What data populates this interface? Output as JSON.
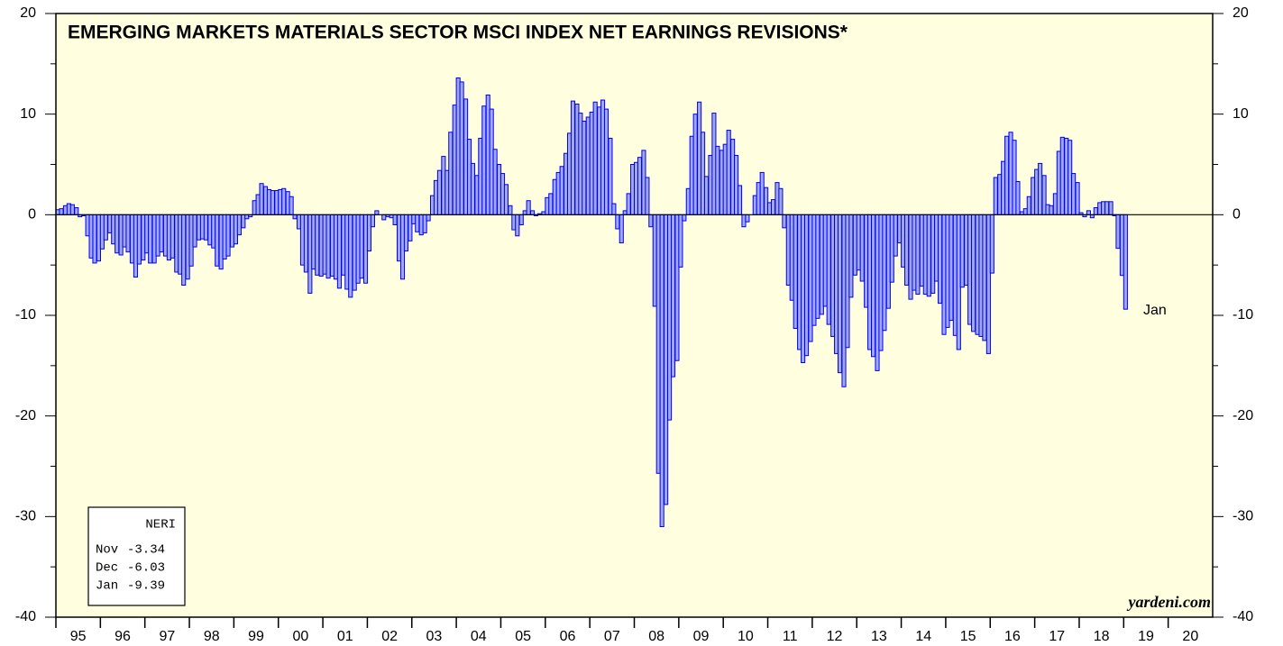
{
  "chart_data": {
    "type": "bar",
    "title": "EMERGING MARKETS MATERIALS SECTOR MSCI INDEX NET EARNINGS REVISIONS*",
    "annotation": "Jan",
    "credit": "yardeni.com",
    "legend_box": {
      "title": "NERI",
      "rows": [
        {
          "month": "Nov",
          "value": -3.34
        },
        {
          "month": "Dec",
          "value": -6.03
        },
        {
          "month": "Jan",
          "value": -9.39
        }
      ]
    },
    "color": "#a0a8ff",
    "stroke": "#0000ee",
    "background": "#ffffe0",
    "xlim": [
      1995,
      2021
    ],
    "xticks": [
      {
        "value": 1995,
        "label": "95"
      },
      {
        "value": 1996,
        "label": "96"
      },
      {
        "value": 1997,
        "label": "97"
      },
      {
        "value": 1998,
        "label": "98"
      },
      {
        "value": 1999,
        "label": "99"
      },
      {
        "value": 2000,
        "label": "00"
      },
      {
        "value": 2001,
        "label": "01"
      },
      {
        "value": 2002,
        "label": "02"
      },
      {
        "value": 2003,
        "label": "03"
      },
      {
        "value": 2004,
        "label": "04"
      },
      {
        "value": 2005,
        "label": "05"
      },
      {
        "value": 2006,
        "label": "06"
      },
      {
        "value": 2007,
        "label": "07"
      },
      {
        "value": 2008,
        "label": "08"
      },
      {
        "value": 2009,
        "label": "09"
      },
      {
        "value": 2010,
        "label": "10"
      },
      {
        "value": 2011,
        "label": "11"
      },
      {
        "value": 2012,
        "label": "12"
      },
      {
        "value": 2013,
        "label": "13"
      },
      {
        "value": 2014,
        "label": "14"
      },
      {
        "value": 2015,
        "label": "15"
      },
      {
        "value": 2016,
        "label": "16"
      },
      {
        "value": 2017,
        "label": "17"
      },
      {
        "value": 2018,
        "label": "18"
      },
      {
        "value": 2019,
        "label": "19"
      },
      {
        "value": 2020,
        "label": "20"
      }
    ],
    "ylim": [
      -40,
      20
    ],
    "yticks": [
      -40,
      -30,
      -20,
      -10,
      0,
      10,
      20
    ],
    "yminorticks": [
      -35,
      -25,
      -15,
      -5,
      5,
      15
    ],
    "x": [
      1995,
      1995.08,
      1995.17,
      1995.25,
      1995.33,
      1995.42,
      1995.5,
      1995.58,
      1995.67,
      1995.75,
      1995.83,
      1995.92,
      1996,
      1996.08,
      1996.17,
      1996.25,
      1996.33,
      1996.42,
      1996.5,
      1996.58,
      1996.67,
      1996.75,
      1996.83,
      1996.92,
      1997,
      1997.08,
      1997.17,
      1997.25,
      1997.33,
      1997.42,
      1997.5,
      1997.58,
      1997.67,
      1997.75,
      1997.83,
      1997.92,
      1998,
      1998.08,
      1998.17,
      1998.25,
      1998.33,
      1998.42,
      1998.5,
      1998.58,
      1998.67,
      1998.75,
      1998.83,
      1998.92,
      1999,
      1999.08,
      1999.17,
      1999.25,
      1999.33,
      1999.42,
      1999.5,
      1999.58,
      1999.67,
      1999.75,
      1999.83,
      1999.92,
      2000,
      2000.08,
      2000.17,
      2000.25,
      2000.33,
      2000.42,
      2000.5,
      2000.58,
      2000.67,
      2000.75,
      2000.83,
      2000.92,
      2001,
      2001.08,
      2001.17,
      2001.25,
      2001.33,
      2001.42,
      2001.5,
      2001.58,
      2001.67,
      2001.75,
      2001.83,
      2001.92,
      2002,
      2002.08,
      2002.17,
      2002.25,
      2002.33,
      2002.42,
      2002.5,
      2002.58,
      2002.67,
      2002.75,
      2002.83,
      2002.92,
      2003,
      2003.08,
      2003.17,
      2003.25,
      2003.33,
      2003.42,
      2003.5,
      2003.58,
      2003.67,
      2003.75,
      2003.83,
      2003.92,
      2004,
      2004.08,
      2004.17,
      2004.25,
      2004.33,
      2004.42,
      2004.5,
      2004.58,
      2004.67,
      2004.75,
      2004.83,
      2004.92,
      2005,
      2005.08,
      2005.17,
      2005.25,
      2005.33,
      2005.42,
      2005.5,
      2005.58,
      2005.67,
      2005.75,
      2005.83,
      2005.92,
      2006,
      2006.08,
      2006.17,
      2006.25,
      2006.33,
      2006.42,
      2006.5,
      2006.58,
      2006.67,
      2006.75,
      2006.83,
      2006.92,
      2007,
      2007.08,
      2007.17,
      2007.25,
      2007.33,
      2007.42,
      2007.5,
      2007.58,
      2007.67,
      2007.75,
      2007.83,
      2007.92,
      2008,
      2008.08,
      2008.17,
      2008.25,
      2008.33,
      2008.42,
      2008.5,
      2008.58,
      2008.67,
      2008.75,
      2008.83,
      2008.92,
      2009,
      2009.08,
      2009.17,
      2009.25,
      2009.33,
      2009.42,
      2009.5,
      2009.58,
      2009.67,
      2009.75,
      2009.83,
      2009.92,
      2010,
      2010.08,
      2010.17,
      2010.25,
      2010.33,
      2010.42,
      2010.5,
      2010.58,
      2010.67,
      2010.75,
      2010.83,
      2010.92,
      2011,
      2011.08,
      2011.17,
      2011.25,
      2011.33,
      2011.42,
      2011.5,
      2011.58,
      2011.67,
      2011.75,
      2011.83,
      2011.92,
      2012,
      2012.08,
      2012.17,
      2012.25,
      2012.33,
      2012.42,
      2012.5,
      2012.58,
      2012.67,
      2012.75,
      2012.83,
      2012.92,
      2013,
      2013.08,
      2013.17,
      2013.25,
      2013.33,
      2013.42,
      2013.5,
      2013.58,
      2013.67,
      2013.75,
      2013.83,
      2013.92,
      2014,
      2014.08,
      2014.17,
      2014.25,
      2014.33,
      2014.42,
      2014.5,
      2014.58,
      2014.67,
      2014.75,
      2014.83,
      2014.92,
      2015,
      2015.08,
      2015.17,
      2015.25,
      2015.33,
      2015.42,
      2015.5,
      2015.58,
      2015.67,
      2015.75,
      2015.83,
      2015.92,
      2016,
      2016.08,
      2016.17,
      2016.25,
      2016.33,
      2016.42,
      2016.5,
      2016.58,
      2016.67,
      2016.75,
      2016.83,
      2016.92,
      2017,
      2017.08,
      2017.17,
      2017.25,
      2017.33,
      2017.42,
      2017.5,
      2017.58,
      2017.67,
      2017.75,
      2017.83,
      2017.92,
      2018,
      2018.08,
      2018.17,
      2018.25,
      2018.33,
      2018.42,
      2018.5,
      2018.58,
      2018.67,
      2018.75,
      2018.83,
      2018.92,
      2019
    ],
    "values": [
      0.5,
      0.6,
      0.9,
      1.1,
      1.0,
      0.7,
      -0.2,
      -0.1,
      -2.1,
      -4.3,
      -4.8,
      -4.6,
      -3.4,
      -2.5,
      -1.8,
      -2.9,
      -3.8,
      -4.0,
      -3.2,
      -3.7,
      -4.8,
      -6.2,
      -4.9,
      -4.5,
      -3.8,
      -4.8,
      -4.8,
      -4.1,
      -3.7,
      -4.1,
      -4.5,
      -4.3,
      -5.7,
      -5.9,
      -7.0,
      -6.4,
      -5.1,
      -3.2,
      -2.5,
      -2.4,
      -2.5,
      -3.0,
      -3.3,
      -5.1,
      -5.4,
      -4.4,
      -4.1,
      -3.2,
      -2.9,
      -2.0,
      -1.3,
      -0.4,
      -0.2,
      1.4,
      2.0,
      3.1,
      2.8,
      2.5,
      2.4,
      2.4,
      2.5,
      2.6,
      2.3,
      1.8,
      -0.4,
      -1.4,
      -5.0,
      -5.7,
      -7.8,
      -5.4,
      -6.0,
      -6.1,
      -5.9,
      -6.3,
      -6.1,
      -6.4,
      -7.3,
      -6.0,
      -7.4,
      -8.2,
      -7.5,
      -6.8,
      -6.3,
      -6.8,
      -3.6,
      -1.2,
      0.4,
      0.0,
      -0.5,
      -0.2,
      -0.3,
      -1.0,
      -4.6,
      -6.4,
      -3.6,
      -2.6,
      -0.9,
      -1.7,
      -2.0,
      -1.8,
      -0.6,
      1.9,
      3.4,
      4.4,
      5.8,
      4.4,
      8.2,
      10.9,
      13.6,
      13.2,
      11.5,
      7.5,
      5.1,
      3.9,
      7.6,
      10.8,
      11.9,
      10.5,
      6.5,
      5.0,
      4.1,
      3.0,
      0.9,
      -1.5,
      -2.1,
      -1.0,
      0.4,
      1.4,
      0.4,
      -0.1,
      0.1,
      0.3,
      1.7,
      2.1,
      3.5,
      4.2,
      4.8,
      6.1,
      8.1,
      11.3,
      11.0,
      10.1,
      9.3,
      9.7,
      10.2,
      11.2,
      10.7,
      11.4,
      10.5,
      7.6,
      1.1,
      -1.4,
      -2.8,
      0.4,
      2.1,
      5.0,
      5.2,
      5.7,
      6.4,
      3.7,
      -1.2,
      -9.1,
      -25.7,
      -31.0,
      -28.8,
      -20.4,
      -16.1,
      -14.5,
      -5.2,
      -0.6,
      2.6,
      7.8,
      10.0,
      11.2,
      8.2,
      3.8,
      5.9,
      10.1,
      6.8,
      6.4,
      7.0,
      8.4,
      7.5,
      5.9,
      2.9,
      -1.2,
      -0.7,
      0.0,
      1.9,
      3.2,
      4.2,
      2.7,
      1.2,
      1.5,
      3.2,
      2.6,
      -1.3,
      -7.0,
      -8.5,
      -11.3,
      -13.4,
      -14.7,
      -14.0,
      -12.6,
      -11.0,
      -10.3,
      -9.9,
      -9.1,
      -10.9,
      -12.1,
      -13.8,
      -15.7,
      -17.1,
      -13.2,
      -8.2,
      -6.0,
      -5.5,
      -6.6,
      -9.2,
      -13.4,
      -14.1,
      -15.5,
      -13.5,
      -11.5,
      -9.3,
      -6.7,
      -4.1,
      -2.8,
      -5.2,
      -7.0,
      -8.4,
      -7.5,
      -7.9,
      -7.1,
      -7.9,
      -8.1,
      -7.8,
      -6.6,
      -8.8,
      -11.9,
      -11.2,
      -10.5,
      -12.0,
      -13.4,
      -7.2,
      -7.0,
      -10.9,
      -11.6,
      -11.9,
      -12.1,
      -12.5,
      -13.8,
      -5.8,
      3.7,
      4.0,
      5.3,
      7.8,
      8.2,
      7.4,
      3.3,
      0.3,
      0.6,
      1.8,
      3.7,
      4.5,
      5.1,
      3.9,
      1.0,
      0.9,
      2.1,
      6.3,
      7.7,
      7.6,
      7.4,
      4.1,
      3.2,
      0.2,
      -0.2,
      0.4,
      -0.3,
      0.7,
      1.2,
      1.3,
      1.3,
      1.3,
      -0.1,
      -3.34,
      -6.03,
      -9.39
    ]
  }
}
